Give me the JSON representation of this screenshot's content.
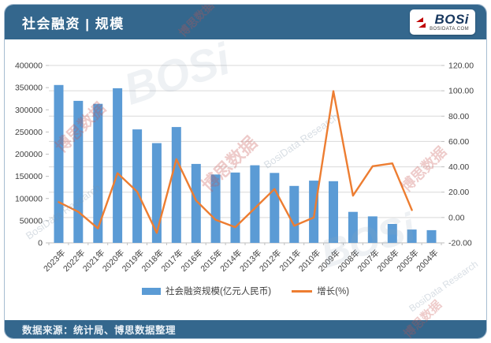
{
  "header": {
    "title": "社会融资 | 规模",
    "logo_text": "BOSi",
    "logo_subtext": "BOSIDATA.COM"
  },
  "legend": {
    "bar_label": "社会融资规模(亿元人民币)",
    "line_label": "增长(%)"
  },
  "footer": {
    "source": "数据来源：统计局、博思数据整理"
  },
  "colors": {
    "header_bar": "#34678D",
    "bar_series": "#5B9BD5",
    "line_series": "#ED7D31",
    "gridline": "#D9D9D9"
  },
  "watermarks": [
    "博思数据",
    "BosiData Research",
    "博思数据",
    "BosiData Research",
    "BOSi",
    "博思数据",
    "BOSi",
    "博思数据",
    "BosiData Research",
    "博思数据"
  ],
  "chart_data": {
    "type": "bar",
    "title": "社会融资规模",
    "categories": [
      "2023年",
      "2022年",
      "2021年",
      "2020年",
      "2019年",
      "2018年",
      "2017年",
      "2016年",
      "2015年",
      "2014年",
      "2013年",
      "2012年",
      "2011年",
      "2010年",
      "2009年",
      "2008年",
      "2007年",
      "2006年",
      "2005年",
      "2004年"
    ],
    "series": [
      {
        "name": "社会融资规模(亿元人民币)",
        "type": "bar",
        "axis": "left",
        "color": "#5B9BD5",
        "values": [
          355900,
          320100,
          313500,
          348600,
          255800,
          224800,
          261200,
          178000,
          154100,
          158500,
          175000,
          157600,
          128300,
          140200,
          139100,
          69800,
          59700,
          42700,
          30000,
          28600
        ]
      },
      {
        "name": "增长(%)",
        "type": "line",
        "axis": "right",
        "color": "#ED7D31",
        "values": [
          12.2,
          4.5,
          -8.6,
          35.0,
          20.4,
          -12.1,
          46.0,
          13.4,
          -1.8,
          -7.6,
          7.4,
          22.5,
          -6.5,
          0.0,
          99.7,
          17.3,
          40.5,
          42.7,
          5.9,
          null
        ]
      }
    ],
    "left_axis": {
      "min": 0,
      "max": 400000,
      "step": 50000,
      "tick_labels": [
        "400000",
        "350000",
        "300000",
        "250000",
        "200000",
        "150000",
        "100000",
        "50000",
        "0"
      ]
    },
    "right_axis": {
      "min": -20,
      "max": 120,
      "step": 20,
      "tick_labels": [
        "120.00",
        "100.00",
        "80.00",
        "60.00",
        "40.00",
        "20.00",
        "0.00",
        "-20.00"
      ]
    },
    "grid": true,
    "legend_position": "bottom"
  }
}
